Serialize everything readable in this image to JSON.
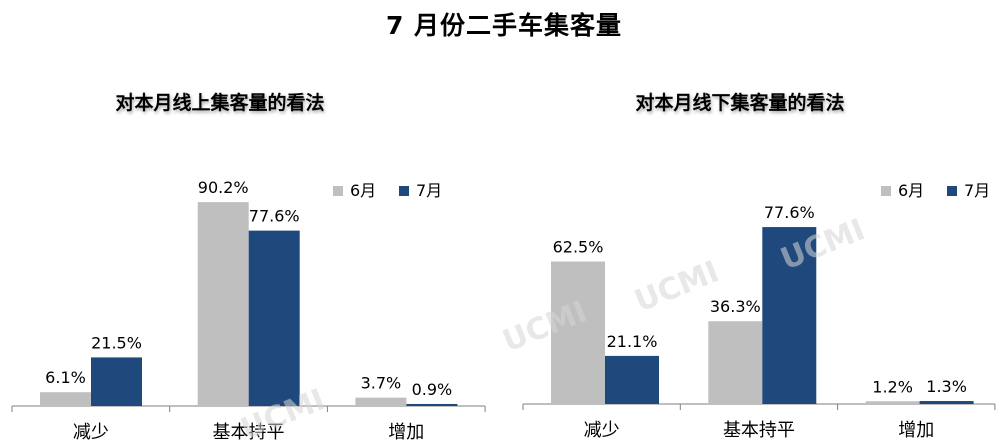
{
  "title": "7 月份二手车集客量",
  "watermark": "UCMI",
  "colors": {
    "june": "#bfbfbf",
    "july": "#1f497d",
    "axis": "#7f7f7f"
  },
  "chart_data": [
    {
      "type": "bar",
      "title": "对本月线上集客量的看法",
      "categories": [
        "减少",
        "基本持平",
        "增加"
      ],
      "series": [
        {
          "name": "6月",
          "values": [
            6.1,
            90.2,
            3.7
          ],
          "labels": [
            "6.1%",
            "90.2%",
            "3.7%"
          ]
        },
        {
          "name": "7月",
          "values": [
            21.5,
            77.6,
            0.9
          ],
          "labels": [
            "21.5%",
            "77.6%",
            "0.9%"
          ]
        }
      ],
      "ylim": [
        0,
        100
      ],
      "grid": false,
      "legend": "top-right"
    },
    {
      "type": "bar",
      "title": "对本月线下集客量的看法",
      "categories": [
        "减少",
        "基本持平",
        "增加"
      ],
      "series": [
        {
          "name": "6月",
          "values": [
            62.5,
            36.3,
            1.2
          ],
          "labels": [
            "62.5%",
            "36.3%",
            "1.2%"
          ]
        },
        {
          "name": "7月",
          "values": [
            21.1,
            77.6,
            1.3
          ],
          "labels": [
            "21.1%",
            "77.6%",
            "1.3%"
          ]
        }
      ],
      "ylim": [
        0,
        100
      ],
      "grid": false,
      "legend": "top-right"
    }
  ]
}
